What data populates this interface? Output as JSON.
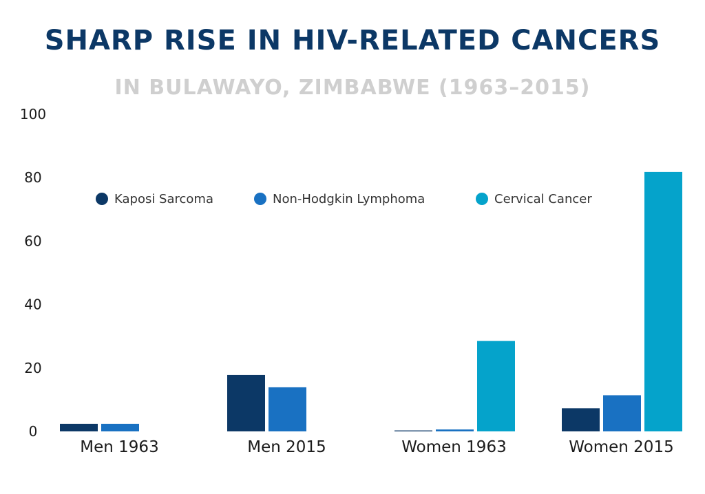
{
  "chart_data": {
    "type": "bar",
    "title": "SHARP RISE IN HIV-RELATED CANCERS",
    "subtitle": "IN BULAWAYO, ZIMBABWE (1963–2015)",
    "categories": [
      "Men 1963",
      "Men 2015",
      "Women 1963",
      "Women 2015"
    ],
    "series": [
      {
        "name": "Kaposi Sarcoma",
        "color": "#0c3866",
        "values": [
          2.4,
          17.8,
          0.3,
          7.3
        ]
      },
      {
        "name": "Non-Hodgkin Lymphoma",
        "color": "#1971c2",
        "values": [
          2.4,
          13.9,
          0.6,
          11.4
        ]
      },
      {
        "name": "Cervical Cancer",
        "color": "#05a3cb",
        "values": [
          null,
          null,
          28.5,
          81.8
        ]
      }
    ],
    "ylim": [
      0,
      100
    ],
    "yticks": [
      0,
      20,
      40,
      60,
      80,
      100
    ],
    "xlabel": "",
    "ylabel": "",
    "legend_position": "top-center"
  }
}
